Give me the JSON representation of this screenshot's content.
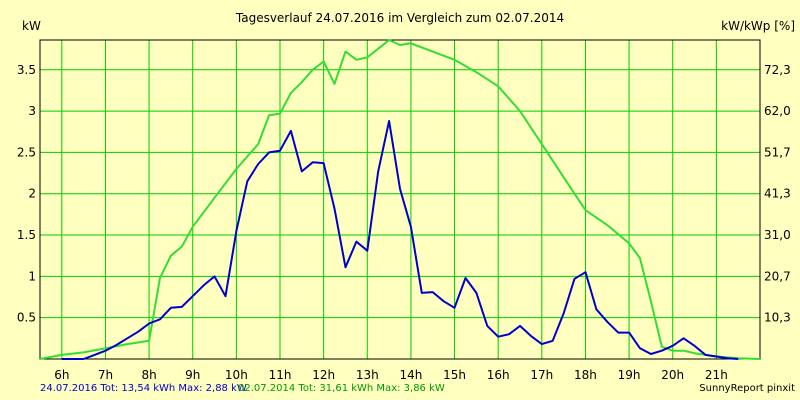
{
  "chart_data": {
    "type": "line",
    "title": "Tagesverlauf 24.07.2016 im Vergleich zum 02.07.2014",
    "ylabel_left": "kW",
    "ylabel_right": "kW/kWp [%]",
    "x_ticks": [
      "6h",
      "7h",
      "8h",
      "9h",
      "10h",
      "11h",
      "12h",
      "13h",
      "14h",
      "15h",
      "16h",
      "17h",
      "18h",
      "19h",
      "20h",
      "21h"
    ],
    "x_tick_values": [
      6,
      7,
      8,
      9,
      10,
      11,
      12,
      13,
      14,
      15,
      16,
      17,
      18,
      19,
      20,
      21
    ],
    "xlim": [
      5.5,
      22.0
    ],
    "ylim": [
      0,
      3.86
    ],
    "y_ticks_left": [
      "0.5",
      "1",
      "1.5",
      "2",
      "2.5",
      "3",
      "3.5"
    ],
    "y_tick_values_left": [
      0.5,
      1,
      1.5,
      2,
      2.5,
      3,
      3.5
    ],
    "y_ticks_right": [
      "10,3",
      "20,7",
      "31,0",
      "41,3",
      "51,7",
      "62,0",
      "72,3"
    ],
    "grid": true,
    "colors": {
      "background": "#ffffc0",
      "grid": "#00cc00",
      "series_2016": "#0000cc",
      "series_2014": "#33dd33",
      "footer_blue": "#0000cc",
      "footer_green": "#009900"
    },
    "series": [
      {
        "name": "24.07.2016",
        "color": "#0000cc",
        "x": [
          6.0,
          6.5,
          6.75,
          7.0,
          7.25,
          7.5,
          7.75,
          8.0,
          8.25,
          8.5,
          8.75,
          9.0,
          9.25,
          9.5,
          9.75,
          10.0,
          10.25,
          10.5,
          10.75,
          11.0,
          11.25,
          11.5,
          11.75,
          12.0,
          12.25,
          12.5,
          12.75,
          13.0,
          13.25,
          13.5,
          13.75,
          14.0,
          14.25,
          14.5,
          14.75,
          15.0,
          15.25,
          15.5,
          15.75,
          16.0,
          16.25,
          16.5,
          16.75,
          17.0,
          17.25,
          17.5,
          17.75,
          18.0,
          18.25,
          18.5,
          18.75,
          19.0,
          19.25,
          19.5,
          19.75,
          20.0,
          20.25,
          20.5,
          20.75,
          21.0,
          21.25,
          21.5
        ],
        "y": [
          0.0,
          0.0,
          0.05,
          0.1,
          0.17,
          0.25,
          0.33,
          0.43,
          0.48,
          0.62,
          0.63,
          0.76,
          0.89,
          1.0,
          0.76,
          1.55,
          2.15,
          2.36,
          2.5,
          2.52,
          2.76,
          2.27,
          2.38,
          2.37,
          1.82,
          1.11,
          1.42,
          1.31,
          2.27,
          2.88,
          2.06,
          1.6,
          0.8,
          0.81,
          0.7,
          0.62,
          0.98,
          0.8,
          0.4,
          0.27,
          0.3,
          0.4,
          0.28,
          0.18,
          0.22,
          0.55,
          0.97,
          1.05,
          0.6,
          0.45,
          0.32,
          0.32,
          0.13,
          0.06,
          0.1,
          0.16,
          0.25,
          0.16,
          0.05,
          0.03,
          0.01,
          0.0
        ]
      },
      {
        "name": "02.07.2014",
        "color": "#33dd33",
        "x": [
          5.5,
          6.0,
          6.5,
          7.0,
          7.5,
          8.0,
          8.25,
          8.5,
          8.75,
          9.0,
          9.5,
          10.0,
          10.5,
          10.75,
          11.0,
          11.25,
          11.5,
          11.75,
          12.0,
          12.25,
          12.5,
          12.75,
          13.0,
          13.5,
          13.75,
          14.0,
          14.5,
          15.0,
          15.5,
          16.0,
          16.5,
          17.0,
          17.5,
          18.0,
          18.5,
          19.0,
          19.25,
          19.5,
          19.75,
          20.0,
          20.25,
          20.5,
          21.0,
          21.5,
          22.0
        ],
        "y": [
          0.0,
          0.05,
          0.08,
          0.13,
          0.18,
          0.22,
          0.98,
          1.25,
          1.36,
          1.6,
          1.95,
          2.3,
          2.6,
          2.95,
          2.97,
          3.22,
          3.35,
          3.5,
          3.6,
          3.33,
          3.72,
          3.62,
          3.65,
          3.86,
          3.8,
          3.82,
          3.72,
          3.62,
          3.47,
          3.3,
          3.0,
          2.6,
          2.2,
          1.8,
          1.62,
          1.4,
          1.22,
          0.7,
          0.15,
          0.1,
          0.1,
          0.07,
          0.03,
          0.01,
          0.0
        ]
      }
    ],
    "footer": {
      "series1": "24.07.2016 Tot: 13,54 kWh Max: 2,88 kW",
      "series2": "02.07.2014 Tot: 31,61 kWh Max: 3,86 kW",
      "credit": "SunnyReport pinxit"
    }
  }
}
